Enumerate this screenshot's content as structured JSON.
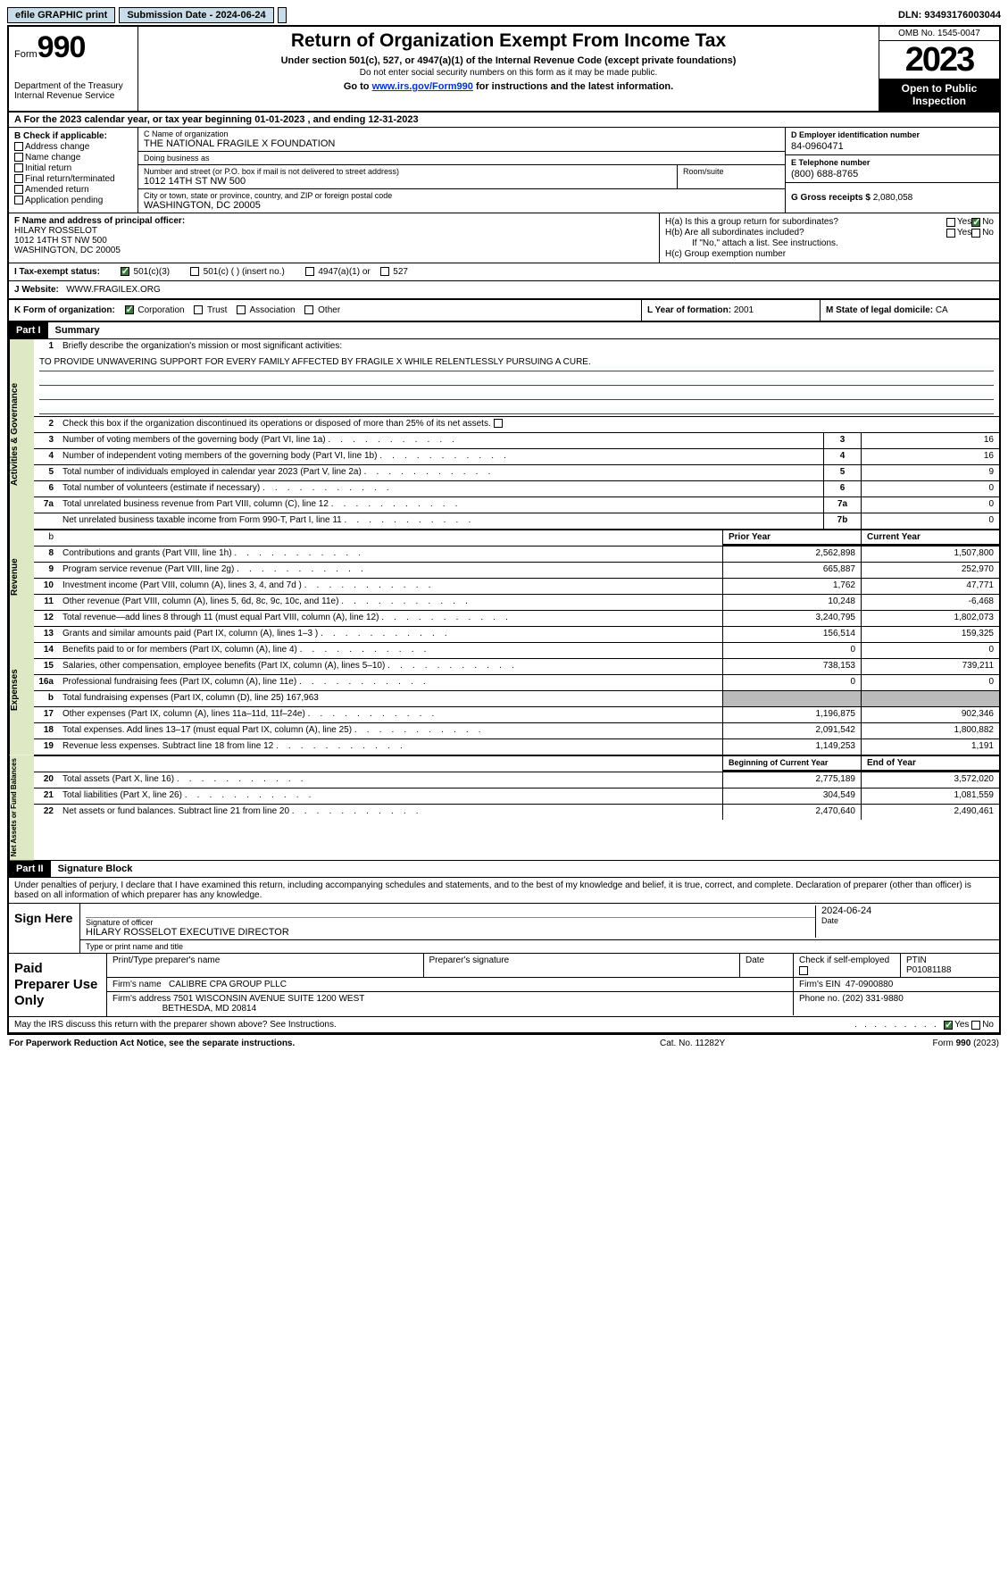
{
  "topbar": {
    "efile": "efile GRAPHIC",
    "print": "print",
    "submission": "Submission Date - 2024-06-24",
    "dln": "DLN: 93493176003044"
  },
  "header": {
    "form_label": "Form",
    "form_num": "990",
    "dept": "Department of the Treasury",
    "irs": "Internal Revenue Service",
    "title": "Return of Organization Exempt From Income Tax",
    "sub1": "Under section 501(c), 527, or 4947(a)(1) of the Internal Revenue Code (except private foundations)",
    "sub2": "Do not enter social security numbers on this form as it may be made public.",
    "sub3_pre": "Go to ",
    "sub3_link": "www.irs.gov/Form990",
    "sub3_post": " for instructions and the latest information.",
    "omb": "OMB No. 1545-0047",
    "year": "2023",
    "open": "Open to Public Inspection"
  },
  "rowA": "A  For the 2023 calendar year, or tax year beginning 01-01-2023    , and ending 12-31-2023",
  "boxB": {
    "label": "B Check if applicable:",
    "items": [
      "Address change",
      "Name change",
      "Initial return",
      "Final return/terminated",
      "Amended return",
      "Application pending"
    ]
  },
  "boxC": {
    "name_lbl": "C Name of organization",
    "name": "THE NATIONAL FRAGILE X FOUNDATION",
    "dba_lbl": "Doing business as",
    "dba": "",
    "street_lbl": "Number and street (or P.O. box if mail is not delivered to street address)",
    "street": "1012 14TH ST NW 500",
    "room_lbl": "Room/suite",
    "room": "",
    "city_lbl": "City or town, state or province, country, and ZIP or foreign postal code",
    "city": "WASHINGTON, DC  20005"
  },
  "boxD": {
    "ein_lbl": "D Employer identification number",
    "ein": "84-0960471",
    "tel_lbl": "E Telephone number",
    "tel": "(800) 688-8765",
    "gross_lbl": "G Gross receipts $",
    "gross": "2,080,058"
  },
  "boxF": {
    "lbl": "F  Name and address of principal officer:",
    "name": "HILARY ROSSELOT",
    "addr1": "1012 14TH ST NW 500",
    "addr2": "WASHINGTON, DC  20005"
  },
  "boxH": {
    "ha": "H(a)  Is this a group return for subordinates?",
    "hb": "H(b)  Are all subordinates included?",
    "hb_note": "If \"No,\" attach a list. See instructions.",
    "hc": "H(c)  Group exemption number",
    "yes": "Yes",
    "no": "No"
  },
  "boxI": {
    "lbl": "I    Tax-exempt status:",
    "o1": "501(c)(3)",
    "o2": "501(c) (   ) (insert no.)",
    "o3": "4947(a)(1) or",
    "o4": "527"
  },
  "boxJ": {
    "lbl": "J    Website:",
    "val": "WWW.FRAGILEX.ORG"
  },
  "boxK": {
    "lbl": "K Form of organization:",
    "o1": "Corporation",
    "o2": "Trust",
    "o3": "Association",
    "o4": "Other"
  },
  "boxL": {
    "lbl": "L Year of formation:",
    "val": "2001"
  },
  "boxM": {
    "lbl": "M State of legal domicile:",
    "val": "CA"
  },
  "part1": {
    "label": "Part I",
    "title": "Summary"
  },
  "summary": {
    "q1": "Briefly describe the organization's mission or most significant activities:",
    "mission": "TO PROVIDE UNWAVERING SUPPORT FOR EVERY FAMILY AFFECTED BY FRAGILE X WHILE RELENTLESSLY PURSUING A CURE.",
    "q2": "Check this box         if the organization discontinued its operations or disposed of more than 25% of its net assets.",
    "vlabels": {
      "gov": "Activities & Governance",
      "rev": "Revenue",
      "exp": "Expenses",
      "net": "Net Assets or Fund Balances"
    },
    "gov_rows": [
      {
        "n": "3",
        "t": "Number of voting members of the governing body (Part VI, line 1a)",
        "b": "3",
        "v": "16"
      },
      {
        "n": "4",
        "t": "Number of independent voting members of the governing body (Part VI, line 1b)",
        "b": "4",
        "v": "16"
      },
      {
        "n": "5",
        "t": "Total number of individuals employed in calendar year 2023 (Part V, line 2a)",
        "b": "5",
        "v": "9"
      },
      {
        "n": "6",
        "t": "Total number of volunteers (estimate if necessary)",
        "b": "6",
        "v": "0"
      },
      {
        "n": "7a",
        "t": "Total unrelated business revenue from Part VIII, column (C), line 12",
        "b": "7a",
        "v": "0"
      },
      {
        "n": "",
        "t": "Net unrelated business taxable income from Form 990-T, Part I, line 11",
        "b": "7b",
        "v": "0"
      }
    ],
    "col_hdr_b": "b",
    "prior_year": "Prior Year",
    "current_year": "Current Year",
    "rev_rows": [
      {
        "n": "8",
        "t": "Contributions and grants (Part VIII, line 1h)",
        "p": "2,562,898",
        "c": "1,507,800"
      },
      {
        "n": "9",
        "t": "Program service revenue (Part VIII, line 2g)",
        "p": "665,887",
        "c": "252,970"
      },
      {
        "n": "10",
        "t": "Investment income (Part VIII, column (A), lines 3, 4, and 7d )",
        "p": "1,762",
        "c": "47,771"
      },
      {
        "n": "11",
        "t": "Other revenue (Part VIII, column (A), lines 5, 6d, 8c, 9c, 10c, and 11e)",
        "p": "10,248",
        "c": "-6,468"
      },
      {
        "n": "12",
        "t": "Total revenue—add lines 8 through 11 (must equal Part VIII, column (A), line 12)",
        "p": "3,240,795",
        "c": "1,802,073"
      }
    ],
    "exp_rows": [
      {
        "n": "13",
        "t": "Grants and similar amounts paid (Part IX, column (A), lines 1–3 )",
        "p": "156,514",
        "c": "159,325"
      },
      {
        "n": "14",
        "t": "Benefits paid to or for members (Part IX, column (A), line 4)",
        "p": "0",
        "c": "0"
      },
      {
        "n": "15",
        "t": "Salaries, other compensation, employee benefits (Part IX, column (A), lines 5–10)",
        "p": "738,153",
        "c": "739,211"
      },
      {
        "n": "16a",
        "t": "Professional fundraising fees (Part IX, column (A), line 11e)",
        "p": "0",
        "c": "0"
      },
      {
        "n": "b",
        "t": "Total fundraising expenses (Part IX, column (D), line 25) 167,963",
        "p": "",
        "c": "",
        "gray": true
      },
      {
        "n": "17",
        "t": "Other expenses (Part IX, column (A), lines 11a–11d, 11f–24e)",
        "p": "1,196,875",
        "c": "902,346"
      },
      {
        "n": "18",
        "t": "Total expenses. Add lines 13–17 (must equal Part IX, column (A), line 25)",
        "p": "2,091,542",
        "c": "1,800,882"
      },
      {
        "n": "19",
        "t": "Revenue less expenses. Subtract line 18 from line 12",
        "p": "1,149,253",
        "c": "1,191"
      }
    ],
    "net_hdr_p": "Beginning of Current Year",
    "net_hdr_c": "End of Year",
    "net_rows": [
      {
        "n": "20",
        "t": "Total assets (Part X, line 16)",
        "p": "2,775,189",
        "c": "3,572,020"
      },
      {
        "n": "21",
        "t": "Total liabilities (Part X, line 26)",
        "p": "304,549",
        "c": "1,081,559"
      },
      {
        "n": "22",
        "t": "Net assets or fund balances. Subtract line 21 from line 20",
        "p": "2,470,640",
        "c": "2,490,461"
      }
    ]
  },
  "part2": {
    "label": "Part II",
    "title": "Signature Block"
  },
  "sig": {
    "perjury": "Under penalties of perjury, I declare that I have examined this return, including accompanying schedules and statements, and to the best of my knowledge and belief, it is true, correct, and complete. Declaration of preparer (other than officer) is based on all information of which preparer has any knowledge.",
    "sign_here": "Sign Here",
    "sig_officer_lbl": "Signature of officer",
    "date_lbl": "Date",
    "date_val": "2024-06-24",
    "officer_name": "HILARY ROSSELOT  EXECUTIVE DIRECTOR",
    "type_lbl": "Type or print name and title",
    "paid_prep": "Paid Preparer Use Only",
    "prep_name_lbl": "Print/Type preparer's name",
    "prep_sig_lbl": "Preparer's signature",
    "check_self": "Check         if self-employed",
    "ptin_lbl": "PTIN",
    "ptin": "P01081188",
    "firm_name_lbl": "Firm's name",
    "firm_name": "CALIBRE CPA GROUP PLLC",
    "firm_ein_lbl": "Firm's EIN",
    "firm_ein": "47-0900880",
    "firm_addr_lbl": "Firm's address",
    "firm_addr1": "7501 WISCONSIN AVENUE SUITE 1200 WEST",
    "firm_addr2": "BETHESDA, MD  20814",
    "phone_lbl": "Phone no.",
    "phone": "(202) 331-9880",
    "discuss": "May the IRS discuss this return with the preparer shown above? See Instructions.",
    "yes": "Yes",
    "no": "No"
  },
  "footer": {
    "l": "For Paperwork Reduction Act Notice, see the separate instructions.",
    "c": "Cat. No. 11282Y",
    "r_pre": "Form ",
    "r_form": "990",
    "r_post": " (2023)"
  }
}
